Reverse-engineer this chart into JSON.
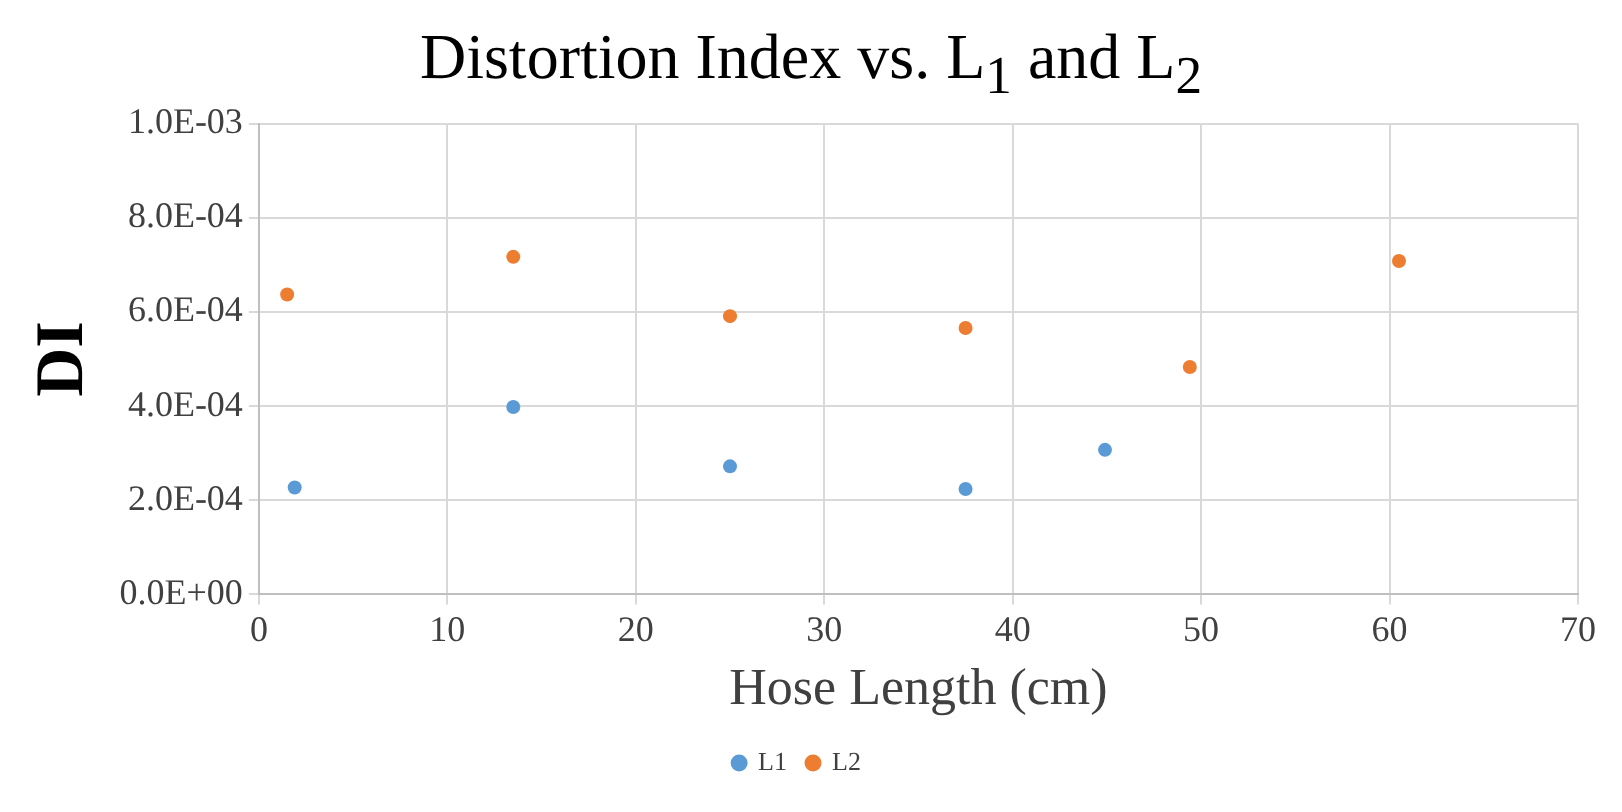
{
  "chart_data": {
    "type": "scatter",
    "title": "Distortion Index vs. L$_{1}$ and L$_{2}$",
    "xlabel": "Hose Length (cm)",
    "ylabel": "DI",
    "series": [
      {
        "name": "L1",
        "color": "#5b9bd5",
        "x": [
          1.9,
          13.5,
          25,
          37.5,
          44.9
        ],
        "values": [
          0.000227,
          0.000398,
          0.000272,
          0.000224,
          0.000307
        ]
      },
      {
        "name": "L2",
        "color": "#ed7d31",
        "x": [
          1.5,
          13.5,
          25,
          37.5,
          49.4,
          60.5
        ],
        "values": [
          0.000637,
          0.000717,
          0.000591,
          0.000566,
          0.000483,
          0.000708
        ]
      }
    ],
    "xlim": [
      0,
      70
    ],
    "xticks": [
      0,
      10,
      20,
      30,
      40,
      50,
      60,
      70
    ],
    "ylim": [
      0,
      0.001
    ],
    "yticks": [
      {
        "value": 0,
        "label": "0.0E+00"
      },
      {
        "value": 0.0002,
        "label": "2.0E-04"
      },
      {
        "value": 0.0004,
        "label": "4.0E-04"
      },
      {
        "value": 0.0006,
        "label": "6.0E-04"
      },
      {
        "value": 0.0008,
        "label": "8.0E-04"
      },
      {
        "value": 0.001,
        "label": "1.0E-03"
      }
    ],
    "grid": true,
    "legend": "bottom",
    "marker": "circle"
  }
}
